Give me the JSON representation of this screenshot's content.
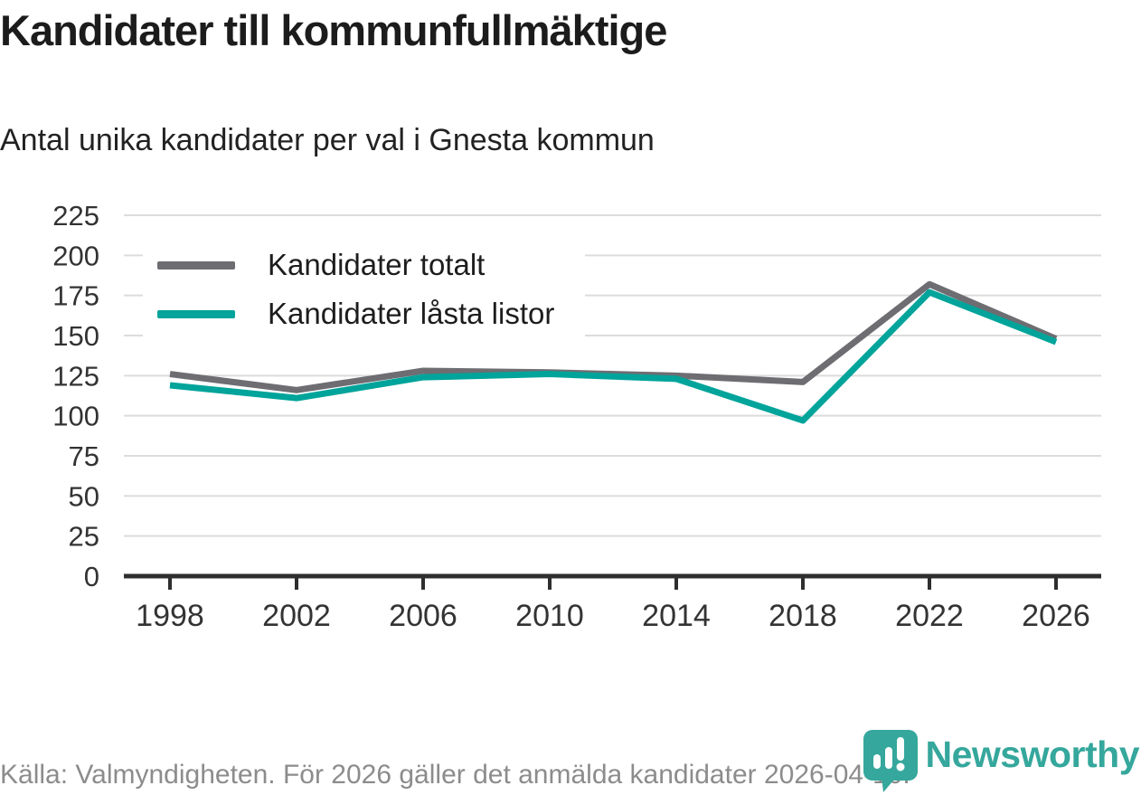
{
  "header": {
    "title": "Kandidater till kommunfullmäktige",
    "subtitle": "Antal unika kandidater per val i Gnesta kommun"
  },
  "chart_data": {
    "type": "line",
    "x": [
      1998,
      2002,
      2006,
      2010,
      2014,
      2018,
      2022,
      2026
    ],
    "series": [
      {
        "name": "Kandidater totalt",
        "color": "#6e6d72",
        "values": [
          126,
          116,
          128,
          127,
          125,
          121,
          182,
          148
        ]
      },
      {
        "name": "Kandidater låsta listor",
        "color": "#00a49a",
        "values": [
          119,
          111,
          124,
          126,
          123,
          97,
          177,
          146
        ]
      }
    ],
    "ylim": [
      0,
      225
    ],
    "ytick_step": 25,
    "grid": true,
    "legend_position": "top-left",
    "gridline_color": "#dcdcdc",
    "axis_color": "#2e2e2e",
    "tick_label_color": "#333333"
  },
  "footer": {
    "source": "Källa: Valmyndigheten. För 2026 gäller det anmälda kandidater 2026-04-10."
  },
  "logo": {
    "text": "Newsworthy",
    "color": "#35a79c",
    "icon": "newsworthy-pin-icon"
  }
}
